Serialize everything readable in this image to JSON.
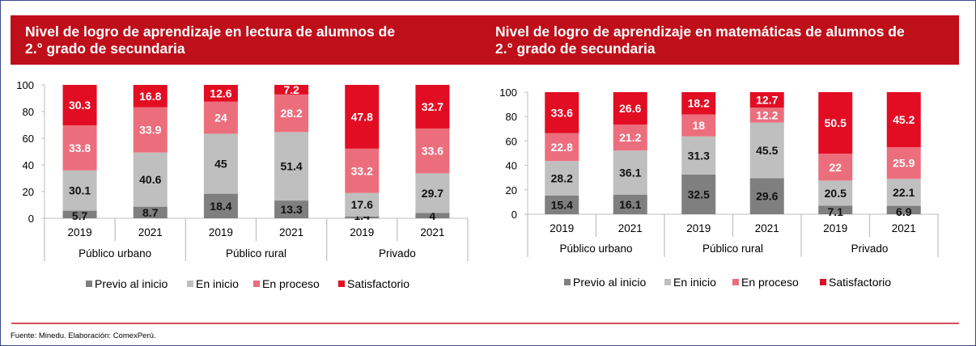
{
  "colors": {
    "title_bg": "#be0f1a",
    "previo": "#7f7f7f",
    "inicio": "#bfbfbf",
    "proceso": "#ec6e7d",
    "satisfactorio": "#e20d23",
    "rule": "#d0505a"
  },
  "source": "Fuente: Minedu. Elaboración: ComexPerú.",
  "chart_data": [
    {
      "type": "bar",
      "stacked": true,
      "title_lines": [
        "Nivel de logro de aprendizaje en lectura de alumnos de",
        "2.° grado de secundaria"
      ],
      "groups": [
        "Público urbano",
        "Público rural",
        "Privado"
      ],
      "categories": [
        "2019",
        "2021",
        "2019",
        "2021",
        "2019",
        "2021"
      ],
      "ylim": [
        0,
        100
      ],
      "yticks": [
        0,
        20,
        40,
        60,
        80,
        100
      ],
      "grid": false,
      "legend_position": "bottom",
      "series": [
        {
          "name": "Previo al inicio",
          "key": "previo",
          "values": [
            5.7,
            8.7,
            18.4,
            13.3,
            1.4,
            4
          ]
        },
        {
          "name": "En inicio",
          "key": "inicio",
          "values": [
            30.1,
            40.6,
            45,
            51.4,
            17.6,
            29.7
          ]
        },
        {
          "name": "En proceso",
          "key": "proceso",
          "values": [
            33.8,
            33.9,
            24,
            28.2,
            33.2,
            33.6
          ]
        },
        {
          "name": "Satisfactorio",
          "key": "satisfactorio",
          "values": [
            30.3,
            16.8,
            12.6,
            7.2,
            47.8,
            32.7
          ]
        }
      ]
    },
    {
      "type": "bar",
      "stacked": true,
      "title_lines": [
        "Nivel de logro de aprendizaje en matemáticas de alumnos de",
        "2.° grado de secundaria"
      ],
      "groups": [
        "Público urbano",
        "Público rural",
        "Privado"
      ],
      "categories": [
        "2019",
        "2021",
        "2019",
        "2021",
        "2019",
        "2021"
      ],
      "ylim": [
        0,
        100
      ],
      "yticks": [
        0,
        20,
        40,
        60,
        80,
        100
      ],
      "grid": false,
      "legend_position": "bottom",
      "series": [
        {
          "name": "Previo al inicio",
          "key": "previo",
          "values": [
            15.4,
            16.1,
            32.5,
            29.6,
            7.1,
            6.9
          ]
        },
        {
          "name": "En inicio",
          "key": "inicio",
          "values": [
            28.2,
            36.1,
            31.3,
            45.5,
            20.5,
            22.1
          ]
        },
        {
          "name": "En proceso",
          "key": "proceso",
          "values": [
            22.8,
            21.2,
            18,
            12.2,
            22,
            25.9
          ]
        },
        {
          "name": "Satisfactorio",
          "key": "satisfactorio",
          "values": [
            33.6,
            26.6,
            18.2,
            12.7,
            50.5,
            45.2
          ]
        }
      ]
    }
  ]
}
